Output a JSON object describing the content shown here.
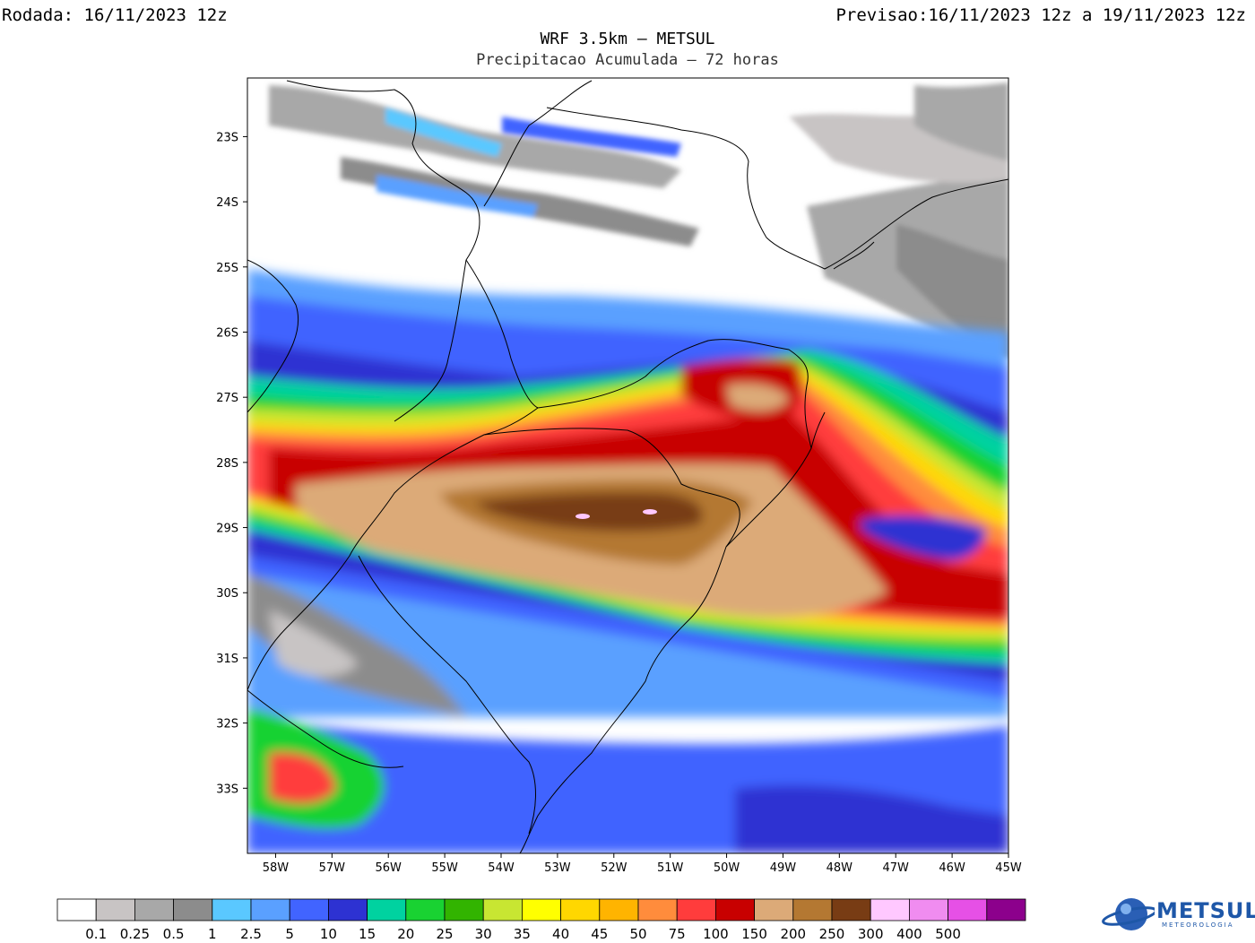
{
  "header": {
    "run_label": "Rodada: 16/11/2023 12z",
    "forecast_label": "Previsao:16/11/2023 12z a 19/11/2023 12z",
    "title": "WRF 3.5km – METSUL",
    "subtitle": "Precipitacao Acumulada – 72 horas"
  },
  "map": {
    "lat_labels": [
      "23S",
      "24S",
      "25S",
      "26S",
      "27S",
      "28S",
      "29S",
      "30S",
      "31S",
      "32S",
      "33S"
    ],
    "lon_labels": [
      "58W",
      "57W",
      "56W",
      "55W",
      "54W",
      "53W",
      "52W",
      "51W",
      "50W",
      "49W",
      "48W",
      "47W",
      "46W",
      "45W"
    ],
    "lat_range": [
      -34,
      -22.1
    ],
    "lon_range": [
      -58.5,
      -45
    ]
  },
  "colorbar": {
    "colors": [
      "#ffffff",
      "#c8c4c4",
      "#a8a8a8",
      "#8c8c8c",
      "#5ac8ff",
      "#5aa0ff",
      "#4164ff",
      "#2d32d2",
      "#00d2a0",
      "#19d232",
      "#32b400",
      "#c8e632",
      "#ffff00",
      "#ffd700",
      "#ffb400",
      "#ff8c3c",
      "#ff3c3c",
      "#c80000",
      "#dcaa78",
      "#b47832",
      "#783c14",
      "#ffc8ff",
      "#f08cf0",
      "#e650e6",
      "#8c008c"
    ],
    "labels": [
      "0.1",
      "0.25",
      "0.5",
      "1",
      "2.5",
      "5",
      "10",
      "15",
      "20",
      "25",
      "30",
      "35",
      "40",
      "45",
      "50",
      "75",
      "100",
      "150",
      "200",
      "250",
      "300",
      "400",
      "500"
    ]
  },
  "logo": {
    "name": "METSUL",
    "sub": "METEOROLOGIA",
    "color": "#1e57a8"
  }
}
